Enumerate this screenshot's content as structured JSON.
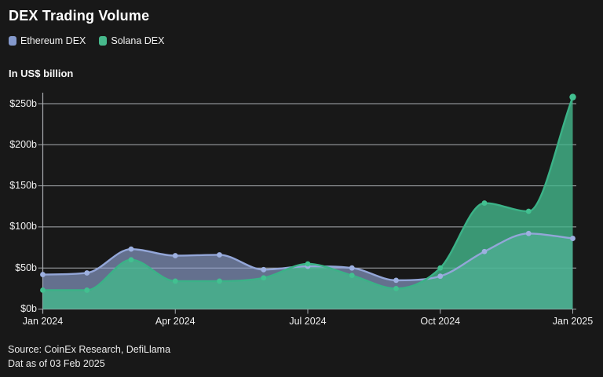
{
  "header": {
    "title": "DEX Trading Volume",
    "unit_label": "In US$ billion"
  },
  "legend": [
    {
      "label": "Ethereum DEX",
      "color": "#8499cc"
    },
    {
      "label": "Solana DEX",
      "color": "#47b98c"
    }
  ],
  "footer": {
    "source_line1": "Source: CoinEx Research, DefiLlama",
    "source_line2": "Dat as of 03 Feb 2025"
  },
  "colors": {
    "background": "#181818",
    "grid": "#a9acb0",
    "axis": "#a9acb0",
    "tick_text": "#f0f0f0",
    "ethereum_line": "#93a6d8",
    "ethereum_dot": "#9db0e0",
    "ethereum_fill": "rgba(147,166,214,0.62)",
    "solana_line": "#3bb287",
    "solana_dot": "#42c090",
    "solana_fill": "rgba(68,184,140,0.8)"
  },
  "chart_data": {
    "type": "area",
    "title": "DEX Trading Volume",
    "ylabel": "In US$ billion",
    "grid": true,
    "legend_position": "top-left",
    "x": [
      "Jan 2024",
      "Feb 2024",
      "Mar 2024",
      "Apr 2024",
      "May 2024",
      "Jun 2024",
      "Jul 2024",
      "Aug 2024",
      "Sep 2024",
      "Oct 2024",
      "Nov 2024",
      "Dec 2024",
      "Jan 2025"
    ],
    "x_tick_indices": [
      0,
      3,
      6,
      9,
      12
    ],
    "x_tick_labels": [
      "Jan 2024",
      "Apr 2024",
      "Jul 2024",
      "Oct 2024",
      "Jan 2025"
    ],
    "y_ticks": [
      0,
      50,
      100,
      150,
      200,
      250
    ],
    "y_tick_labels": [
      "$0b",
      "$50b",
      "$100b",
      "$150b",
      "$200b",
      "$250b"
    ],
    "ylim": [
      0,
      265
    ],
    "series": [
      {
        "name": "Ethereum DEX",
        "values": [
          42,
          44,
          73,
          65,
          66,
          48,
          52,
          50,
          35,
          40,
          70,
          92,
          86
        ]
      },
      {
        "name": "Solana DEX",
        "values": [
          23,
          23,
          60,
          34,
          34,
          38,
          55,
          41,
          25,
          50,
          129,
          119,
          258
        ]
      }
    ]
  }
}
